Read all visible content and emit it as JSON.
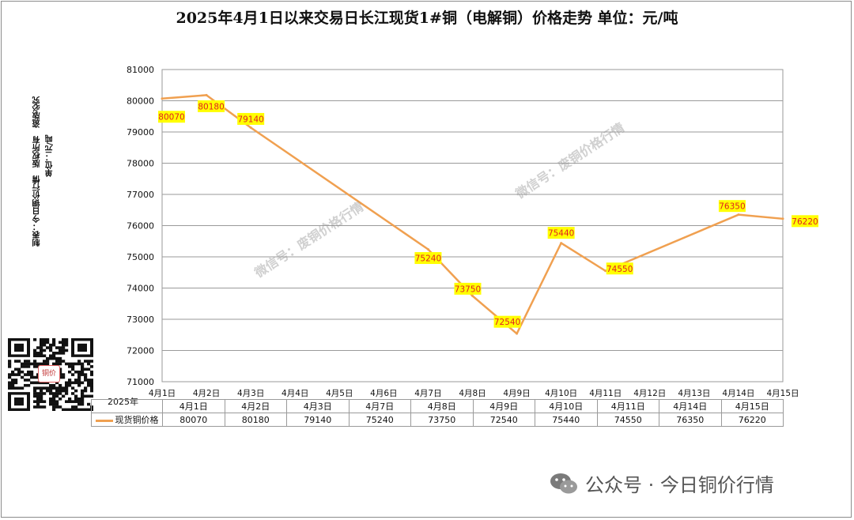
{
  "title": "2025年4月1日以来交易日长江现货1#铜（电解铜）价格走势 单位：元/吨",
  "side_notes": {
    "line1": "制表：今日铜价行情　版权所有　盗版必究",
    "line2": "单位：元/吨"
  },
  "watermarks": [
    "微信号：废铜价格行情",
    "微信号：废铜价格行情"
  ],
  "qr_badge": "铜价",
  "footer": {
    "icon": "wechat-icon",
    "text": "公众号 · 今日铜价行情"
  },
  "colors": {
    "line": "#f0a050",
    "label_bg": "#ffff00",
    "label_text": "#e02020",
    "grid": "#9a9a9a"
  },
  "chart_data": {
    "type": "line",
    "title": "2025年4月1日以来交易日长江现货1#铜（电解铜）价格走势 单位：元/吨",
    "x_axis_year": "2025年",
    "axis_categories": [
      "4月1日",
      "4月2日",
      "4月3日",
      "4月4日",
      "4月5日",
      "4月6日",
      "4月7日",
      "4月8日",
      "4月9日",
      "4月10日",
      "4月11日",
      "4月12日",
      "4月13日",
      "4月14日",
      "4月15日"
    ],
    "ylim": [
      71000,
      81000
    ],
    "y_ticks": [
      71000,
      72000,
      73000,
      74000,
      75000,
      76000,
      77000,
      78000,
      79000,
      80000,
      81000
    ],
    "grid": true,
    "series": [
      {
        "name": "现货铜价格",
        "x": [
          "4月1日",
          "4月2日",
          "4月3日",
          "4月7日",
          "4月8日",
          "4月9日",
          "4月10日",
          "4月11日",
          "4月14日",
          "4月15日"
        ],
        "values": [
          80070,
          80180,
          79140,
          75240,
          73750,
          72540,
          75440,
          74550,
          76350,
          76220
        ]
      }
    ],
    "data_labels": [
      "80070",
      "80180",
      "79140",
      "75240",
      "73750",
      "72540",
      "75440",
      "74550",
      "76350",
      "76220"
    ]
  }
}
